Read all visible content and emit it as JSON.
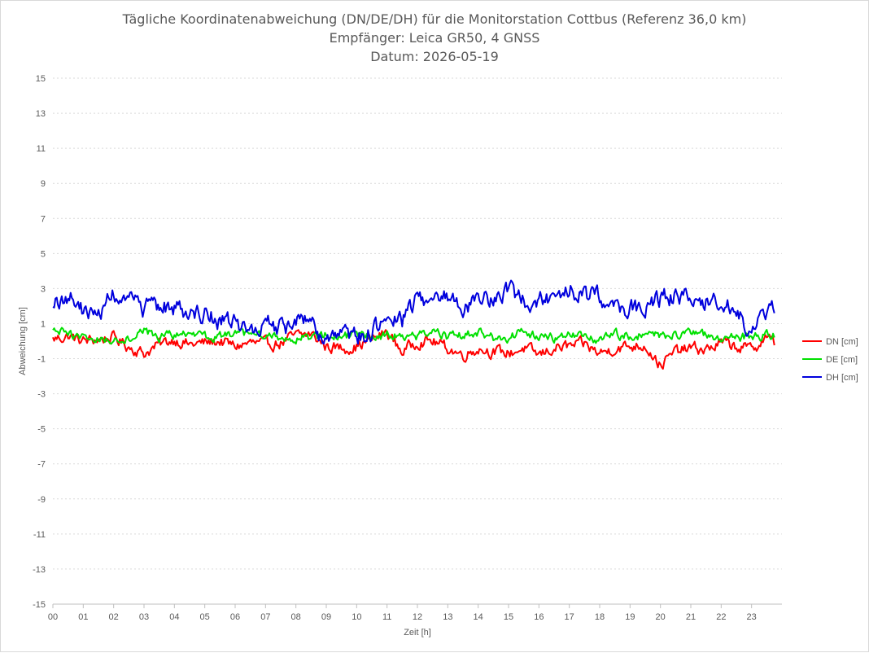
{
  "chart_data": {
    "type": "line",
    "title": [
      "Tägliche Koordinatenabweichung (DN/DE/DH) für die Monitorstation Cottbus (Referenz 36,0 km)",
      "Empfänger: Leica GR50, 4 GNSS",
      "Datum: 2026-05-19"
    ],
    "xlabel": "Zeit [h]",
    "ylabel": "Abweichung [cm]",
    "xlim": [
      0,
      24
    ],
    "ylim": [
      -15,
      15
    ],
    "x_ticks": [
      "00",
      "01",
      "02",
      "03",
      "04",
      "05",
      "06",
      "07",
      "08",
      "09",
      "10",
      "11",
      "12",
      "13",
      "14",
      "15",
      "16",
      "17",
      "18",
      "19",
      "20",
      "21",
      "22",
      "23"
    ],
    "y_ticks": [
      15,
      13,
      11,
      9,
      7,
      5,
      3,
      1,
      -1,
      -3,
      -5,
      -7,
      -9,
      -11,
      -13,
      -15
    ],
    "grid": true,
    "legend_position": "right",
    "x_hours": [
      0,
      0.5,
      1,
      1.5,
      2,
      2.5,
      3,
      3.5,
      4,
      4.5,
      5,
      5.5,
      6,
      6.5,
      7,
      7.5,
      8,
      8.5,
      9,
      9.5,
      10,
      10.5,
      11,
      11.5,
      12,
      12.5,
      13,
      13.5,
      14,
      14.5,
      15,
      15.5,
      16,
      16.5,
      17,
      17.5,
      18,
      18.5,
      19,
      19.5,
      20,
      20.5,
      21,
      21.5,
      22,
      22.5,
      23,
      23.5,
      23.75
    ],
    "series": [
      {
        "name": "DN [cm]",
        "color": "#ff0000",
        "values": [
          0.1,
          0.3,
          0.0,
          0.1,
          0.2,
          -0.3,
          -0.7,
          -0.2,
          0.1,
          -0.2,
          -0.1,
          0.0,
          -0.3,
          -0.1,
          -0.2,
          -0.1,
          0.3,
          0.4,
          -0.3,
          -0.4,
          -0.3,
          0.1,
          0.5,
          -0.6,
          0.0,
          0.0,
          -0.4,
          -0.8,
          -0.4,
          -0.6,
          -0.7,
          -0.4,
          -0.8,
          -0.4,
          -0.3,
          -0.2,
          -0.7,
          -0.4,
          -0.3,
          -0.2,
          -1.4,
          -0.6,
          -0.4,
          -0.5,
          -0.1,
          -0.3,
          -0.5,
          0.3,
          -0.2
        ]
      },
      {
        "name": "DE [cm]",
        "color": "#00e000",
        "values": [
          0.6,
          0.4,
          0.2,
          0.1,
          0.1,
          0.2,
          0.6,
          0.2,
          0.4,
          0.3,
          0.2,
          0.3,
          0.4,
          0.3,
          0.3,
          0.2,
          0.2,
          0.2,
          0.3,
          0.3,
          0.3,
          0.2,
          0.4,
          0.3,
          0.3,
          0.5,
          0.2,
          0.3,
          0.5,
          0.2,
          0.2,
          0.6,
          0.3,
          0.2,
          0.3,
          0.2,
          0.1,
          0.4,
          0.3,
          0.4,
          0.4,
          0.3,
          0.4,
          0.3,
          0.2,
          0.2,
          0.3,
          0.3,
          0.3
        ]
      },
      {
        "name": "DH [cm]",
        "color": "#0000dd",
        "values": [
          2.0,
          2.6,
          1.7,
          1.5,
          2.8,
          2.2,
          1.8,
          2.0,
          1.9,
          1.7,
          1.6,
          1.2,
          0.9,
          0.7,
          0.9,
          0.7,
          1.0,
          1.1,
          -0.3,
          0.5,
          0.2,
          0.5,
          1.3,
          1.2,
          2.6,
          2.3,
          2.6,
          2.0,
          2.5,
          2.5,
          2.9,
          2.2,
          2.4,
          2.6,
          3.0,
          2.6,
          2.5,
          2.3,
          1.8,
          2.0,
          2.4,
          2.6,
          2.6,
          2.3,
          2.2,
          1.5,
          0.8,
          1.4,
          1.9
        ]
      }
    ]
  }
}
